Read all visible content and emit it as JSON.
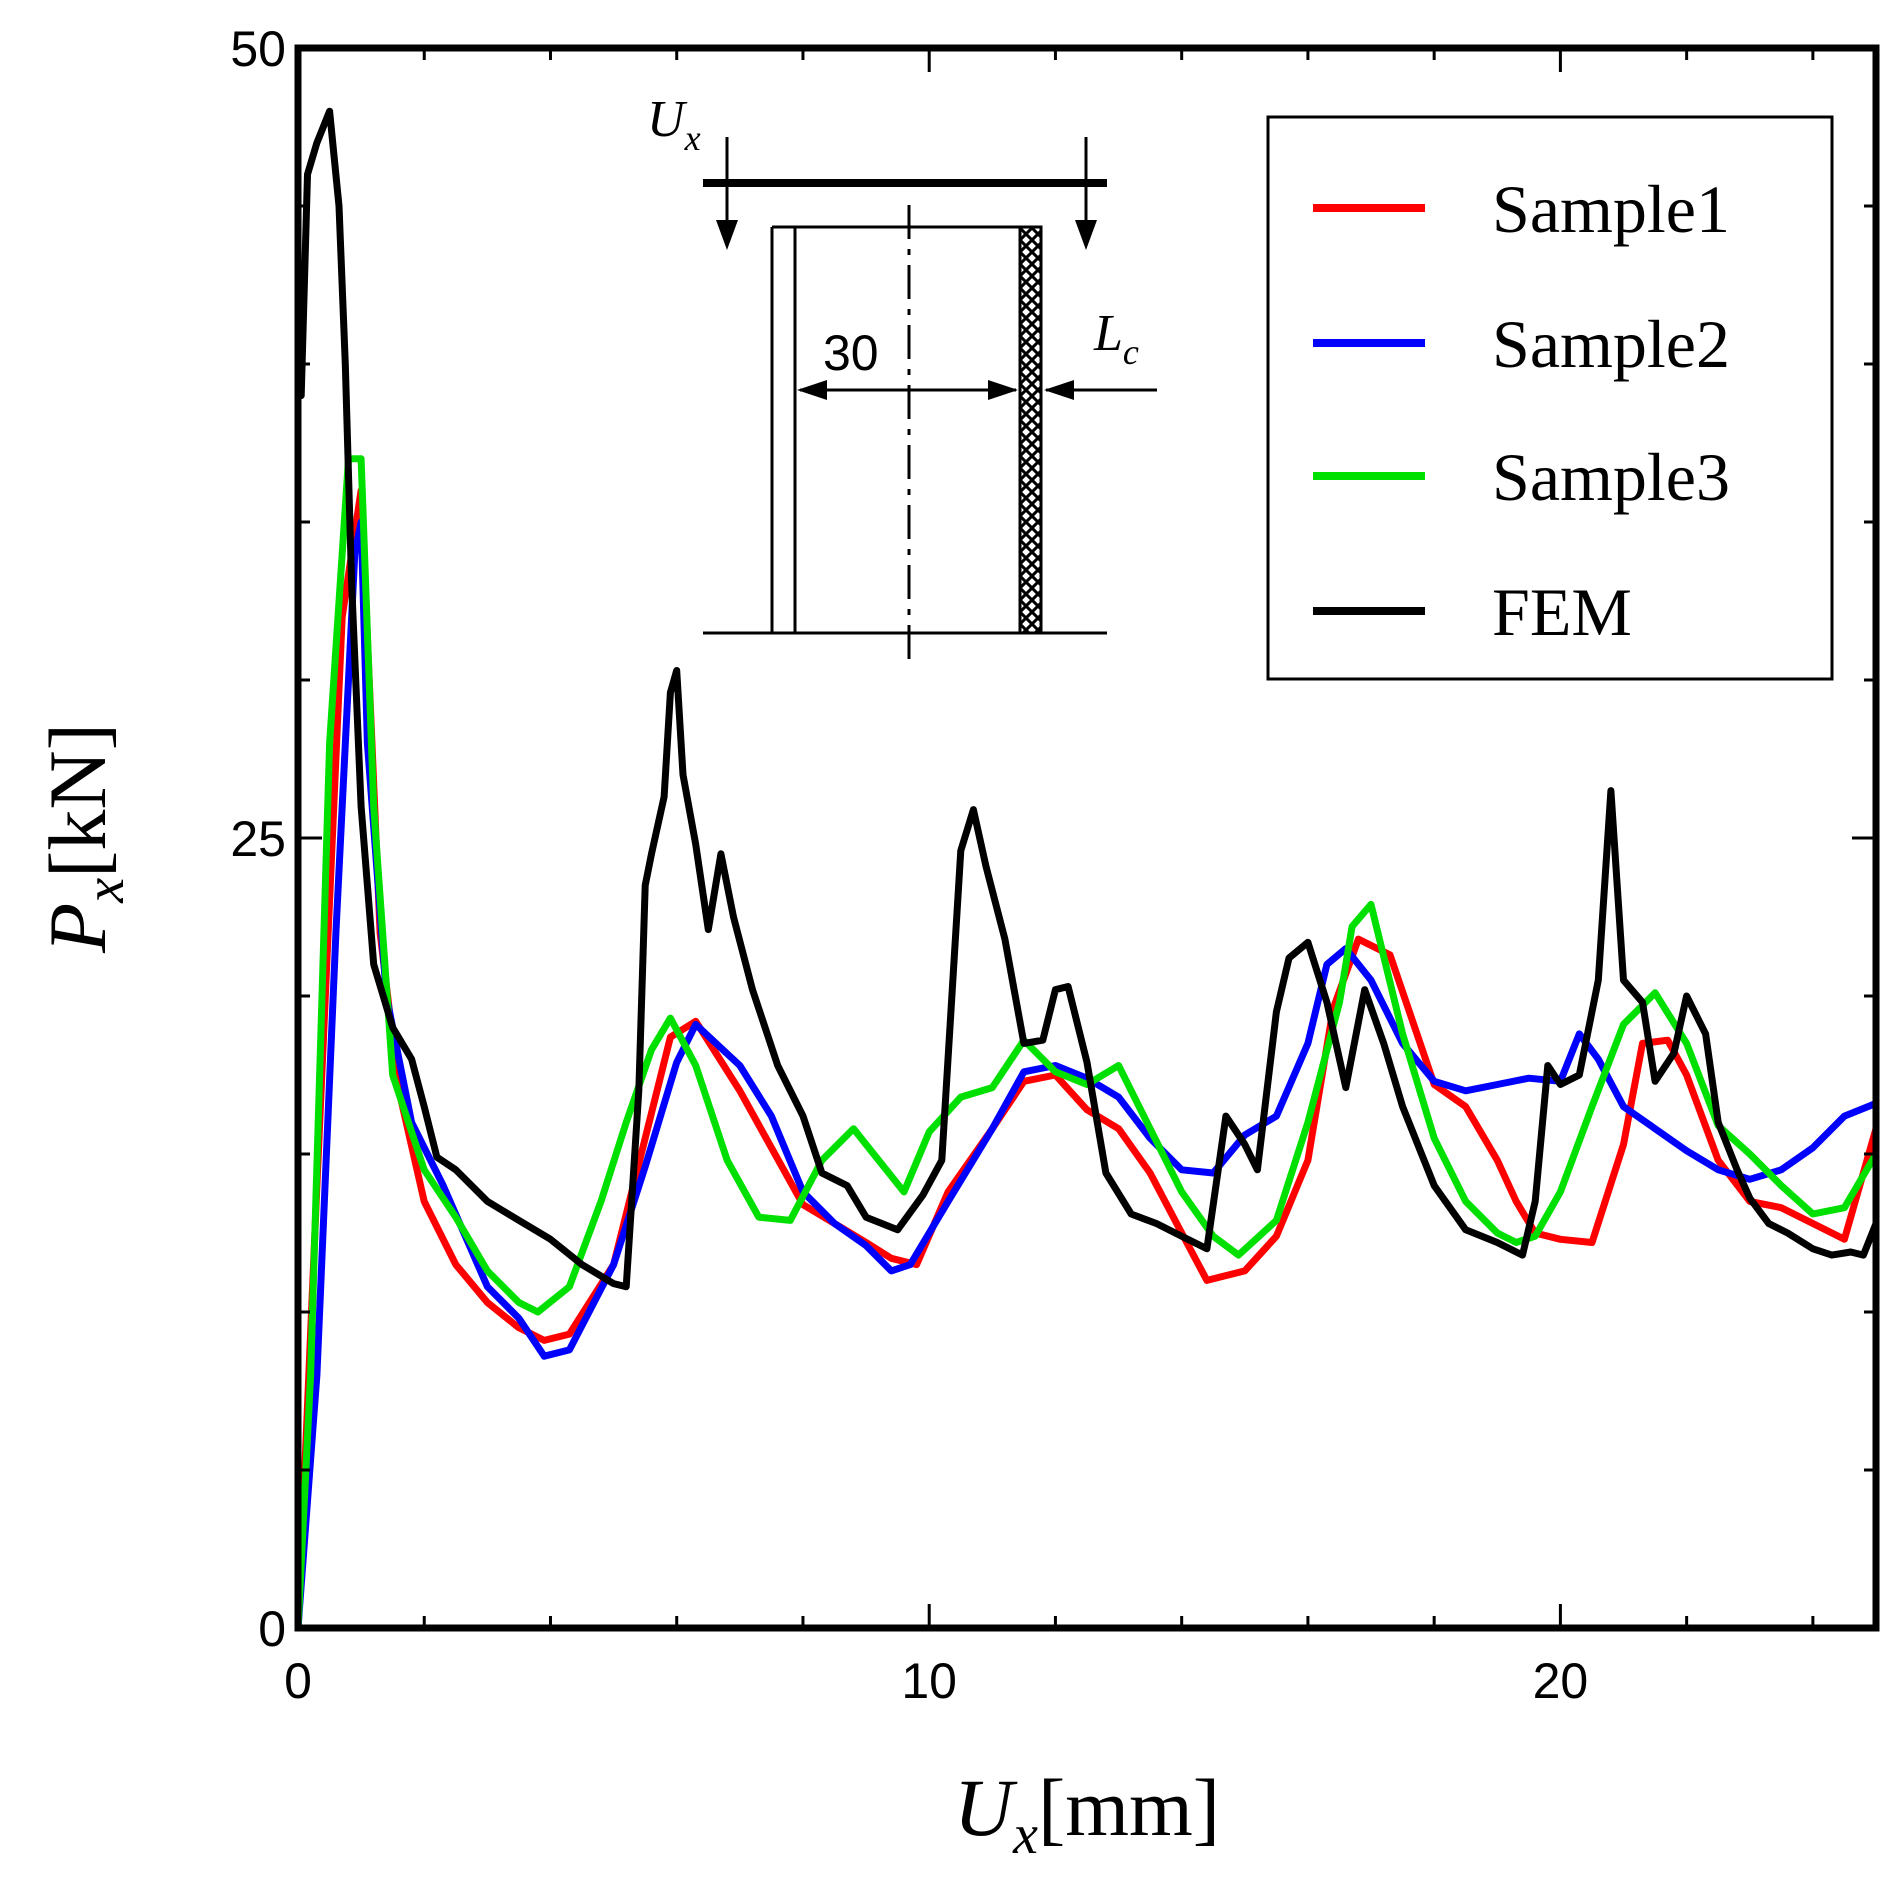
{
  "chart_data": {
    "type": "line",
    "xlabel": {
      "symbol": "U",
      "sub": "x",
      "unit": "[mm]"
    },
    "ylabel": {
      "symbol": "P",
      "sub": "x",
      "unit": "[kN]"
    },
    "xlim": [
      0,
      25
    ],
    "ylim": [
      0,
      50
    ],
    "xticks": [
      0,
      10,
      20
    ],
    "yticks": [
      0,
      25,
      50
    ],
    "legend_position": "top-right",
    "grid": false,
    "series": [
      {
        "name": "Sample1",
        "color": "#ff0000",
        "x": [
          0,
          0.3,
          0.7,
          1.0,
          1.3,
          1.6,
          2.0,
          2.5,
          3.0,
          3.5,
          3.9,
          4.3,
          5.0,
          5.5,
          5.9,
          6.3,
          7.0,
          7.5,
          8.0,
          8.5,
          9.0,
          9.4,
          9.8,
          10.3,
          11.0,
          11.5,
          12.0,
          12.5,
          13.0,
          13.5,
          14.0,
          14.4,
          15.0,
          15.5,
          16.0,
          16.4,
          16.8,
          17.3,
          18.0,
          18.5,
          19.0,
          19.3,
          19.6,
          20.0,
          20.5,
          21.0,
          21.3,
          21.7,
          22.0,
          22.5,
          23.0,
          23.5,
          24.0,
          24.5,
          25.0
        ],
        "y": [
          0,
          14,
          32,
          36,
          22,
          17,
          13.5,
          11.5,
          10.3,
          9.5,
          9.1,
          9.3,
          11.5,
          15.5,
          18.7,
          19.2,
          17,
          15.2,
          13.4,
          12.8,
          12.2,
          11.7,
          11.5,
          13.8,
          15.8,
          17.3,
          17.5,
          16.4,
          15.8,
          14.4,
          12.5,
          11.0,
          11.3,
          12.4,
          14.8,
          19.6,
          21.8,
          21.3,
          17.2,
          16.5,
          14.8,
          13.5,
          12.5,
          12.3,
          12.2,
          15.3,
          18.5,
          18.6,
          17.5,
          14.8,
          13.5,
          13.3,
          12.8,
          12.3,
          15.8
        ]
      },
      {
        "name": "Sample2",
        "color": "#0000ff",
        "x": [
          0,
          0.3,
          0.6,
          0.9,
          1.0,
          1.1,
          1.4,
          1.8,
          2.3,
          3.0,
          3.5,
          3.9,
          4.3,
          5.0,
          5.5,
          6.0,
          6.3,
          7.0,
          7.5,
          8.0,
          8.5,
          9.0,
          9.4,
          9.7,
          10.3,
          11.0,
          11.5,
          12.0,
          12.5,
          13.0,
          13.5,
          14.0,
          14.5,
          15.0,
          15.5,
          16.0,
          16.3,
          16.6,
          17.0,
          17.5,
          18.0,
          18.5,
          19.0,
          19.5,
          20.0,
          20.3,
          20.6,
          21.0,
          21.5,
          22.0,
          22.5,
          23.0,
          23.5,
          24.0,
          24.5,
          25.0
        ],
        "y": [
          0,
          8,
          22,
          34,
          35,
          28,
          20,
          16,
          14,
          10.8,
          9.8,
          8.6,
          8.8,
          11.5,
          14.6,
          17.9,
          19.1,
          17.8,
          16.2,
          13.8,
          12.8,
          12.1,
          11.3,
          11.5,
          13.5,
          15.8,
          17.6,
          17.8,
          17.4,
          16.8,
          15.5,
          14.5,
          14.4,
          15.6,
          16.2,
          18.5,
          21.0,
          21.5,
          20.5,
          18.5,
          17.3,
          17.0,
          17.2,
          17.4,
          17.3,
          18.8,
          18.0,
          16.5,
          15.8,
          15.1,
          14.5,
          14.2,
          14.5,
          15.2,
          16.2,
          16.6
        ]
      },
      {
        "name": "Sample3",
        "color": "#00e000",
        "x": [
          0,
          0.2,
          0.5,
          0.8,
          1.0,
          1.2,
          1.5,
          2.0,
          2.5,
          3.0,
          3.5,
          3.8,
          4.3,
          4.8,
          5.2,
          5.6,
          5.9,
          6.3,
          6.8,
          7.3,
          7.8,
          8.3,
          8.8,
          9.2,
          9.6,
          10.0,
          10.5,
          11.0,
          11.5,
          12.0,
          12.5,
          13.0,
          13.5,
          14.0,
          14.5,
          14.9,
          15.5,
          16.0,
          16.5,
          16.7,
          17.0,
          17.5,
          18.0,
          18.5,
          19.0,
          19.3,
          19.6,
          20.0,
          20.5,
          21.0,
          21.5,
          22.0,
          22.5,
          23.0,
          23.5,
          24.0,
          24.5,
          25.0
        ],
        "y": [
          0,
          8,
          28,
          37,
          37,
          26,
          17.5,
          14.5,
          13,
          11.3,
          10.3,
          10,
          10.8,
          13.5,
          16,
          18.3,
          19.3,
          17.8,
          14.8,
          13.0,
          12.9,
          14.8,
          15.8,
          14.8,
          13.8,
          15.7,
          16.8,
          17.1,
          18.6,
          17.6,
          17.2,
          17.8,
          15.8,
          13.8,
          12.4,
          11.8,
          12.9,
          16.0,
          19.8,
          22.2,
          22.9,
          18.8,
          15.5,
          13.5,
          12.5,
          12.2,
          12.4,
          13.8,
          16.5,
          19.1,
          20.1,
          18.5,
          15.9,
          15.0,
          14.0,
          13.1,
          13.3,
          15.0
        ]
      },
      {
        "name": "FEM",
        "color": "#000000",
        "x": [
          0.05,
          0.15,
          0.3,
          0.5,
          0.65,
          0.75,
          0.85,
          1.0,
          1.2,
          1.5,
          1.8,
          2.0,
          2.2,
          2.5,
          3.0,
          3.5,
          4.0,
          4.5,
          5.0,
          5.2,
          5.4,
          5.5,
          5.6,
          5.8,
          5.9,
          6.0,
          6.1,
          6.3,
          6.5,
          6.7,
          6.9,
          7.2,
          7.6,
          8.0,
          8.3,
          8.7,
          9.0,
          9.5,
          9.9,
          10.2,
          10.5,
          10.7,
          10.9,
          11.2,
          11.5,
          11.8,
          12.0,
          12.2,
          12.5,
          12.8,
          13.2,
          13.6,
          14.0,
          14.4,
          14.7,
          15.0,
          15.2,
          15.5,
          15.7,
          16.0,
          16.3,
          16.6,
          16.9,
          17.2,
          17.5,
          18.0,
          18.5,
          19.0,
          19.4,
          19.6,
          19.8,
          20.0,
          20.3,
          20.6,
          20.8,
          21.0,
          21.3,
          21.5,
          21.8,
          22.0,
          22.3,
          22.5,
          22.8,
          23.0,
          23.3,
          23.6,
          24.0,
          24.3,
          24.6,
          24.8,
          25.0
        ],
        "y": [
          39,
          46,
          47,
          48,
          45,
          40,
          33,
          26,
          21,
          19,
          18,
          16.5,
          14.9,
          14.5,
          13.5,
          12.9,
          12.3,
          11.5,
          10.9,
          10.8,
          17,
          23.5,
          24.5,
          26.3,
          29.6,
          30.3,
          27,
          24.8,
          22.1,
          24.5,
          22.5,
          20.2,
          17.8,
          16.2,
          14.4,
          14.0,
          13.0,
          12.6,
          13.7,
          14.8,
          24.6,
          25.9,
          24.1,
          21.8,
          18.5,
          18.6,
          20.2,
          20.3,
          17.9,
          14.4,
          13.1,
          12.8,
          12.4,
          12.0,
          16.2,
          15.3,
          14.5,
          19.5,
          21.2,
          21.7,
          19.8,
          17.1,
          20.2,
          18.5,
          16.5,
          14.0,
          12.6,
          12.2,
          11.8,
          13.5,
          17.8,
          17.2,
          17.5,
          20.5,
          26.5,
          20.5,
          19.8,
          17.3,
          18.2,
          20.0,
          18.8,
          16.0,
          14.5,
          13.6,
          12.8,
          12.5,
          12.0,
          11.8,
          11.9,
          11.8,
          12.8
        ]
      }
    ]
  },
  "inset": {
    "load_label": {
      "symbol": "U",
      "sub": "x"
    },
    "dimension": "30",
    "length_label": {
      "symbol": "L",
      "sub": "c"
    }
  },
  "colors": {
    "axes": "#000000",
    "background": "#ffffff"
  }
}
